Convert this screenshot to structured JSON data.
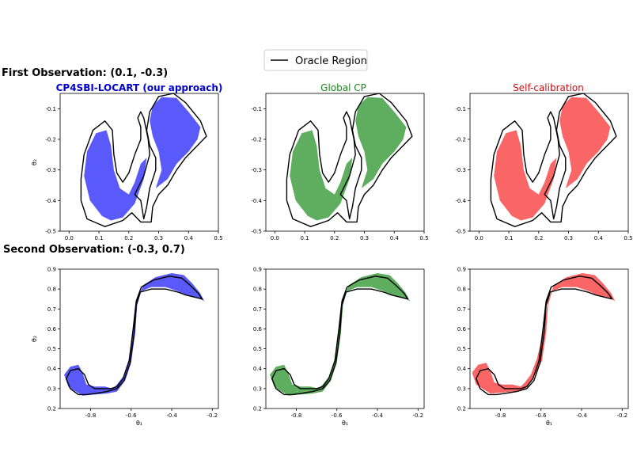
{
  "figure": {
    "legend_label": "Oracle Region",
    "row_titles": [
      "First Observation: (0.1, -0.3)",
      "Second Observation: (-0.3, 0.7)"
    ],
    "column_titles": [
      "CP4SBI-LOCART (our approach)",
      "Global CP",
      "Self-calibration"
    ],
    "column_colors": [
      "#0000cc",
      "#1a8a1a",
      "#cc1111"
    ],
    "fill_colors": [
      "#5a5afa",
      "#5fae5f",
      "#fa6666"
    ],
    "oracle_color": "#000000"
  },
  "chart_data": [
    {
      "type": "area",
      "row": 0,
      "col": 0,
      "title": "CP4SBI-LOCART (our approach)",
      "xlabel": "",
      "ylabel": "θ₂",
      "xlim": [
        -0.03,
        0.5
      ],
      "ylim": [
        -0.5,
        -0.05
      ],
      "xticks": [
        "0.0",
        "0.1",
        "0.2",
        "0.3",
        "0.4",
        "0.5"
      ],
      "yticks": [
        "-0.1",
        "-0.2",
        "-0.3",
        "-0.4",
        "-0.5"
      ],
      "legend": "top-center",
      "grid": false
    },
    {
      "type": "area",
      "row": 0,
      "col": 1,
      "title": "Global CP",
      "xlabel": "",
      "ylabel": "",
      "xlim": [
        -0.03,
        0.5
      ],
      "ylim": [
        -0.5,
        -0.05
      ],
      "xticks": [
        "0.0",
        "0.1",
        "0.2",
        "0.3",
        "0.4",
        "0.5"
      ],
      "yticks": [
        "-0.1",
        "-0.2",
        "-0.3",
        "-0.4",
        "-0.5"
      ],
      "grid": false
    },
    {
      "type": "area",
      "row": 0,
      "col": 2,
      "title": "Self-calibration",
      "xlabel": "",
      "ylabel": "",
      "xlim": [
        -0.03,
        0.5
      ],
      "ylim": [
        -0.5,
        -0.05
      ],
      "xticks": [
        "0.0",
        "0.1",
        "0.2",
        "0.3",
        "0.4",
        "0.5"
      ],
      "yticks": [
        "-0.1",
        "-0.2",
        "-0.3",
        "-0.4",
        "-0.5"
      ],
      "grid": false
    },
    {
      "type": "area",
      "row": 1,
      "col": 0,
      "title": "",
      "xlabel": "θ₁",
      "ylabel": "θ₂",
      "xlim": [
        -0.95,
        -0.17
      ],
      "ylim": [
        0.2,
        0.9
      ],
      "xticks": [
        "-0.8",
        "-0.6",
        "-0.4",
        "-0.2"
      ],
      "yticks": [
        "0.2",
        "0.3",
        "0.4",
        "0.5",
        "0.6",
        "0.7",
        "0.8",
        "0.9"
      ],
      "grid": false
    },
    {
      "type": "area",
      "row": 1,
      "col": 1,
      "title": "",
      "xlabel": "θ₁",
      "ylabel": "",
      "xlim": [
        -0.95,
        -0.17
      ],
      "ylim": [
        0.2,
        0.9
      ],
      "xticks": [
        "-0.8",
        "-0.6",
        "-0.4",
        "-0.2"
      ],
      "yticks": [
        "0.2",
        "0.3",
        "0.4",
        "0.5",
        "0.6",
        "0.7",
        "0.8",
        "0.9"
      ],
      "grid": false
    },
    {
      "type": "area",
      "row": 1,
      "col": 2,
      "title": "",
      "xlabel": "θ₁",
      "ylabel": "",
      "xlim": [
        -0.95,
        -0.17
      ],
      "ylim": [
        0.2,
        0.9
      ],
      "xticks": [
        "-0.8",
        "-0.6",
        "-0.4",
        "-0.2"
      ],
      "yticks": [
        "0.2",
        "0.3",
        "0.4",
        "0.5",
        "0.6",
        "0.7",
        "0.8",
        "0.9"
      ],
      "grid": false
    }
  ]
}
